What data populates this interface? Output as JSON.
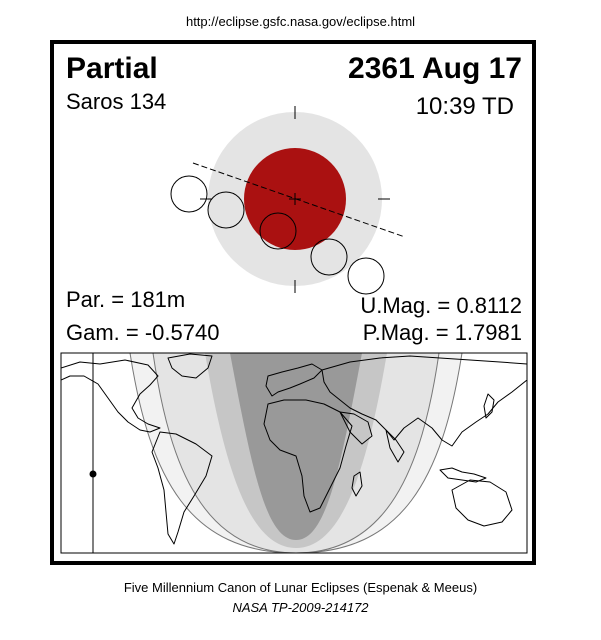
{
  "header": {
    "url": "http://eclipse.gsfc.nasa.gov/eclipse.html"
  },
  "eclipse": {
    "type": "Partial",
    "date": "2361 Aug 17",
    "saros": "Saros 134",
    "time": "10:39 TD",
    "par": "Par. = 181m",
    "gam": "Gam. = -0.5740",
    "umag": "U.Mag. = 0.8112",
    "pmag": "P.Mag. = 1.7981"
  },
  "colors": {
    "umbra": "#aa1111",
    "penumbra": "#e4e4e4",
    "map_total": "#999999",
    "map_partial": "#c6c6c6",
    "map_penumbral": "#e4e4e4",
    "map_edge": "#f2f2f2"
  },
  "footer": {
    "credit": "Five Millennium Canon of Lunar Eclipses (Espenak & Meeus)",
    "publication": "NASA TP-2009-214172"
  }
}
